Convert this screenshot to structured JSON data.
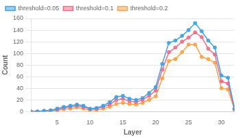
{
  "chart_data": {
    "type": "line",
    "x": [
      1,
      2,
      3,
      4,
      5,
      6,
      7,
      8,
      9,
      10,
      11,
      12,
      13,
      14,
      15,
      16,
      17,
      18,
      19,
      20,
      21,
      22,
      23,
      24,
      25,
      26,
      27,
      28,
      29,
      30,
      31,
      32
    ],
    "series": [
      {
        "name": "threshold=0.05",
        "values": [
          0,
          0,
          1,
          2,
          5,
          8,
          10,
          12,
          10,
          5,
          6,
          10,
          16,
          25,
          27,
          22,
          20,
          23,
          32,
          42,
          82,
          118,
          122,
          130,
          140,
          152,
          138,
          122,
          110,
          62,
          58,
          5
        ]
      },
      {
        "name": "threshold=0.1",
        "values": [
          0,
          0,
          1,
          2,
          3,
          6,
          8,
          10,
          8,
          4,
          5,
          8,
          12,
          20,
          22,
          18,
          16,
          20,
          27,
          36,
          72,
          102,
          110,
          120,
          127,
          136,
          128,
          108,
          98,
          52,
          48,
          4
        ]
      },
      {
        "name": "threshold=0.2",
        "values": [
          0,
          0,
          0,
          1,
          2,
          4,
          5,
          7,
          5,
          2,
          3,
          5,
          8,
          13,
          15,
          13,
          12,
          15,
          20,
          26,
          57,
          87,
          90,
          102,
          115,
          115,
          94,
          90,
          84,
          40,
          38,
          3
        ]
      }
    ],
    "x_label": "Layer",
    "y_label": "Count",
    "xlim": [
      1,
      32
    ],
    "xticks": [
      5,
      10,
      15,
      20,
      25,
      30
    ],
    "ylim": [
      0,
      160
    ],
    "yticks": [
      0,
      20,
      40,
      60,
      80,
      100,
      120,
      140,
      160
    ],
    "grid": "y",
    "legend": "upper left",
    "marker": "circle"
  }
}
